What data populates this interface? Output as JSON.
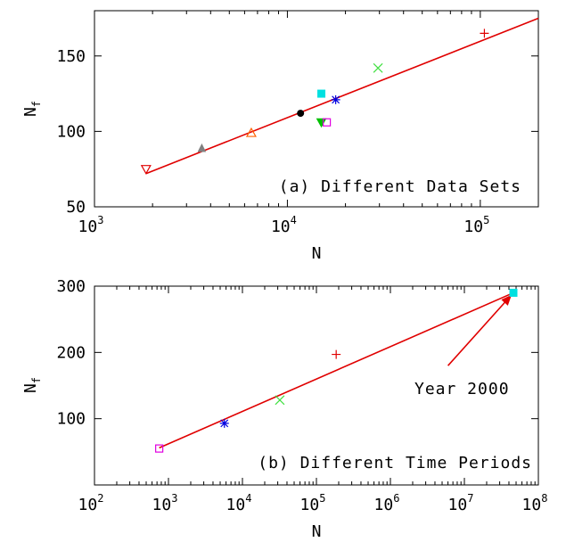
{
  "chart_data": [
    {
      "type": "scatter",
      "panel": "a",
      "annotation": "(a) Different Data Sets",
      "xlabel": "N",
      "ylabel": "N",
      "ylabel_sub": "f",
      "x_scale": "log",
      "xlim": [
        1000,
        200000
      ],
      "ylim": [
        50,
        180
      ],
      "x_ticks": [
        {
          "base": "10",
          "exp": "3",
          "value": 1000
        },
        {
          "base": "10",
          "exp": "4",
          "value": 10000
        },
        {
          "base": "10",
          "exp": "5",
          "value": 100000
        }
      ],
      "y_ticks": [
        {
          "label": "50",
          "value": 50
        },
        {
          "label": "100",
          "value": 100
        },
        {
          "label": "150",
          "value": 150
        }
      ],
      "fit_line": {
        "x": [
          1850,
          200000
        ],
        "y": [
          72,
          175
        ],
        "color": "#e00000"
      },
      "points": [
        {
          "x": 1850,
          "y": 75,
          "marker": "triangle-down-open",
          "color": "#e00000"
        },
        {
          "x": 3600,
          "y": 89,
          "marker": "triangle-up-filled",
          "color": "#808080"
        },
        {
          "x": 6500,
          "y": 99,
          "marker": "triangle-up-open",
          "color": "#ff6000"
        },
        {
          "x": 11700,
          "y": 112,
          "marker": "circle-filled",
          "color": "#000000"
        },
        {
          "x": 15000,
          "y": 125,
          "marker": "square-filled",
          "color": "#00e0e0"
        },
        {
          "x": 15000,
          "y": 106,
          "marker": "triangle-down-filled",
          "color": "#00c000"
        },
        {
          "x": 16000,
          "y": 106,
          "marker": "square-open",
          "color": "#e000e0"
        },
        {
          "x": 17800,
          "y": 121,
          "marker": "asterisk",
          "color": "#0000e0"
        },
        {
          "x": 29500,
          "y": 142,
          "marker": "cross",
          "color": "#40e040"
        },
        {
          "x": 105000,
          "y": 165,
          "marker": "plus",
          "color": "#e00000"
        }
      ]
    },
    {
      "type": "scatter",
      "panel": "b",
      "annotation": "(b) Different Time Periods",
      "arrow_label": "Year 2000",
      "xlabel": "N",
      "ylabel": "N",
      "ylabel_sub": "f",
      "x_scale": "log",
      "xlim": [
        100,
        100000000
      ],
      "ylim": [
        0,
        300
      ],
      "x_ticks": [
        {
          "base": "10",
          "exp": "2",
          "value": 100
        },
        {
          "base": "10",
          "exp": "3",
          "value": 1000
        },
        {
          "base": "10",
          "exp": "4",
          "value": 10000
        },
        {
          "base": "10",
          "exp": "5",
          "value": 100000
        },
        {
          "base": "10",
          "exp": "6",
          "value": 1000000
        },
        {
          "base": "10",
          "exp": "7",
          "value": 10000000
        },
        {
          "base": "10",
          "exp": "8",
          "value": 100000000
        }
      ],
      "y_ticks": [
        {
          "label": "100",
          "value": 100
        },
        {
          "label": "200",
          "value": 200
        },
        {
          "label": "300",
          "value": 300
        }
      ],
      "fit_line": {
        "x": [
          750,
          46000000
        ],
        "y": [
          56,
          290
        ],
        "color": "#e00000"
      },
      "arrow": {
        "from": [
          6000000,
          180
        ],
        "to": [
          42000000,
          285
        ],
        "color": "#e00000"
      },
      "points": [
        {
          "x": 750,
          "y": 55,
          "marker": "square-open",
          "color": "#e000e0"
        },
        {
          "x": 5700,
          "y": 93,
          "marker": "asterisk",
          "color": "#0000e0"
        },
        {
          "x": 32000,
          "y": 128,
          "marker": "cross",
          "color": "#40e040"
        },
        {
          "x": 185000,
          "y": 197,
          "marker": "plus",
          "color": "#e00000"
        },
        {
          "x": 46000000,
          "y": 290,
          "marker": "square-filled",
          "color": "#00e0e0"
        }
      ]
    }
  ]
}
